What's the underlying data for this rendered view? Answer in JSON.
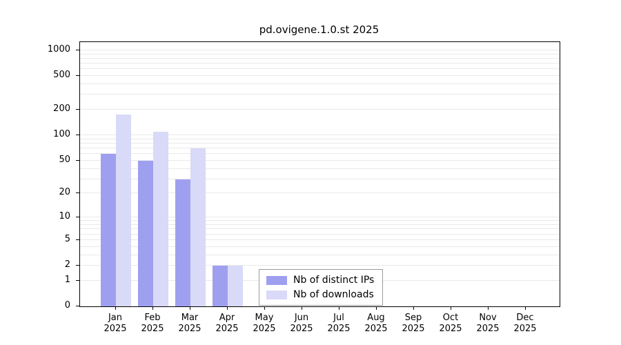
{
  "chart_data": {
    "type": "bar",
    "title": "pd.ovigene.1.0.st 2025",
    "categories": [
      "Jan",
      "Feb",
      "Mar",
      "Apr",
      "May",
      "Jun",
      "Jul",
      "Aug",
      "Sep",
      "Oct",
      "Nov",
      "Dec"
    ],
    "x_sublabel": "2025",
    "series": [
      {
        "name": "Nb of distinct IPs",
        "color": "#9f9ff0",
        "values": [
          60,
          50,
          30,
          2,
          0,
          0,
          0,
          0,
          0,
          0,
          0,
          0
        ]
      },
      {
        "name": "Nb of downloads",
        "color": "#d9d9f8",
        "values": [
          175,
          110,
          70,
          2,
          0,
          0,
          0,
          0,
          0,
          0,
          0,
          0
        ]
      }
    ],
    "y_ticks": [
      0,
      1,
      2,
      5,
      10,
      20,
      50,
      100,
      200,
      500,
      1000
    ],
    "y_scale": "log10(value+1)",
    "ylim": [
      0,
      1250
    ],
    "grid": true,
    "legend_position": "bottom-center",
    "colors": {
      "grid": "#e9e9e9",
      "axis": "#000000",
      "background": "#ffffff"
    }
  }
}
